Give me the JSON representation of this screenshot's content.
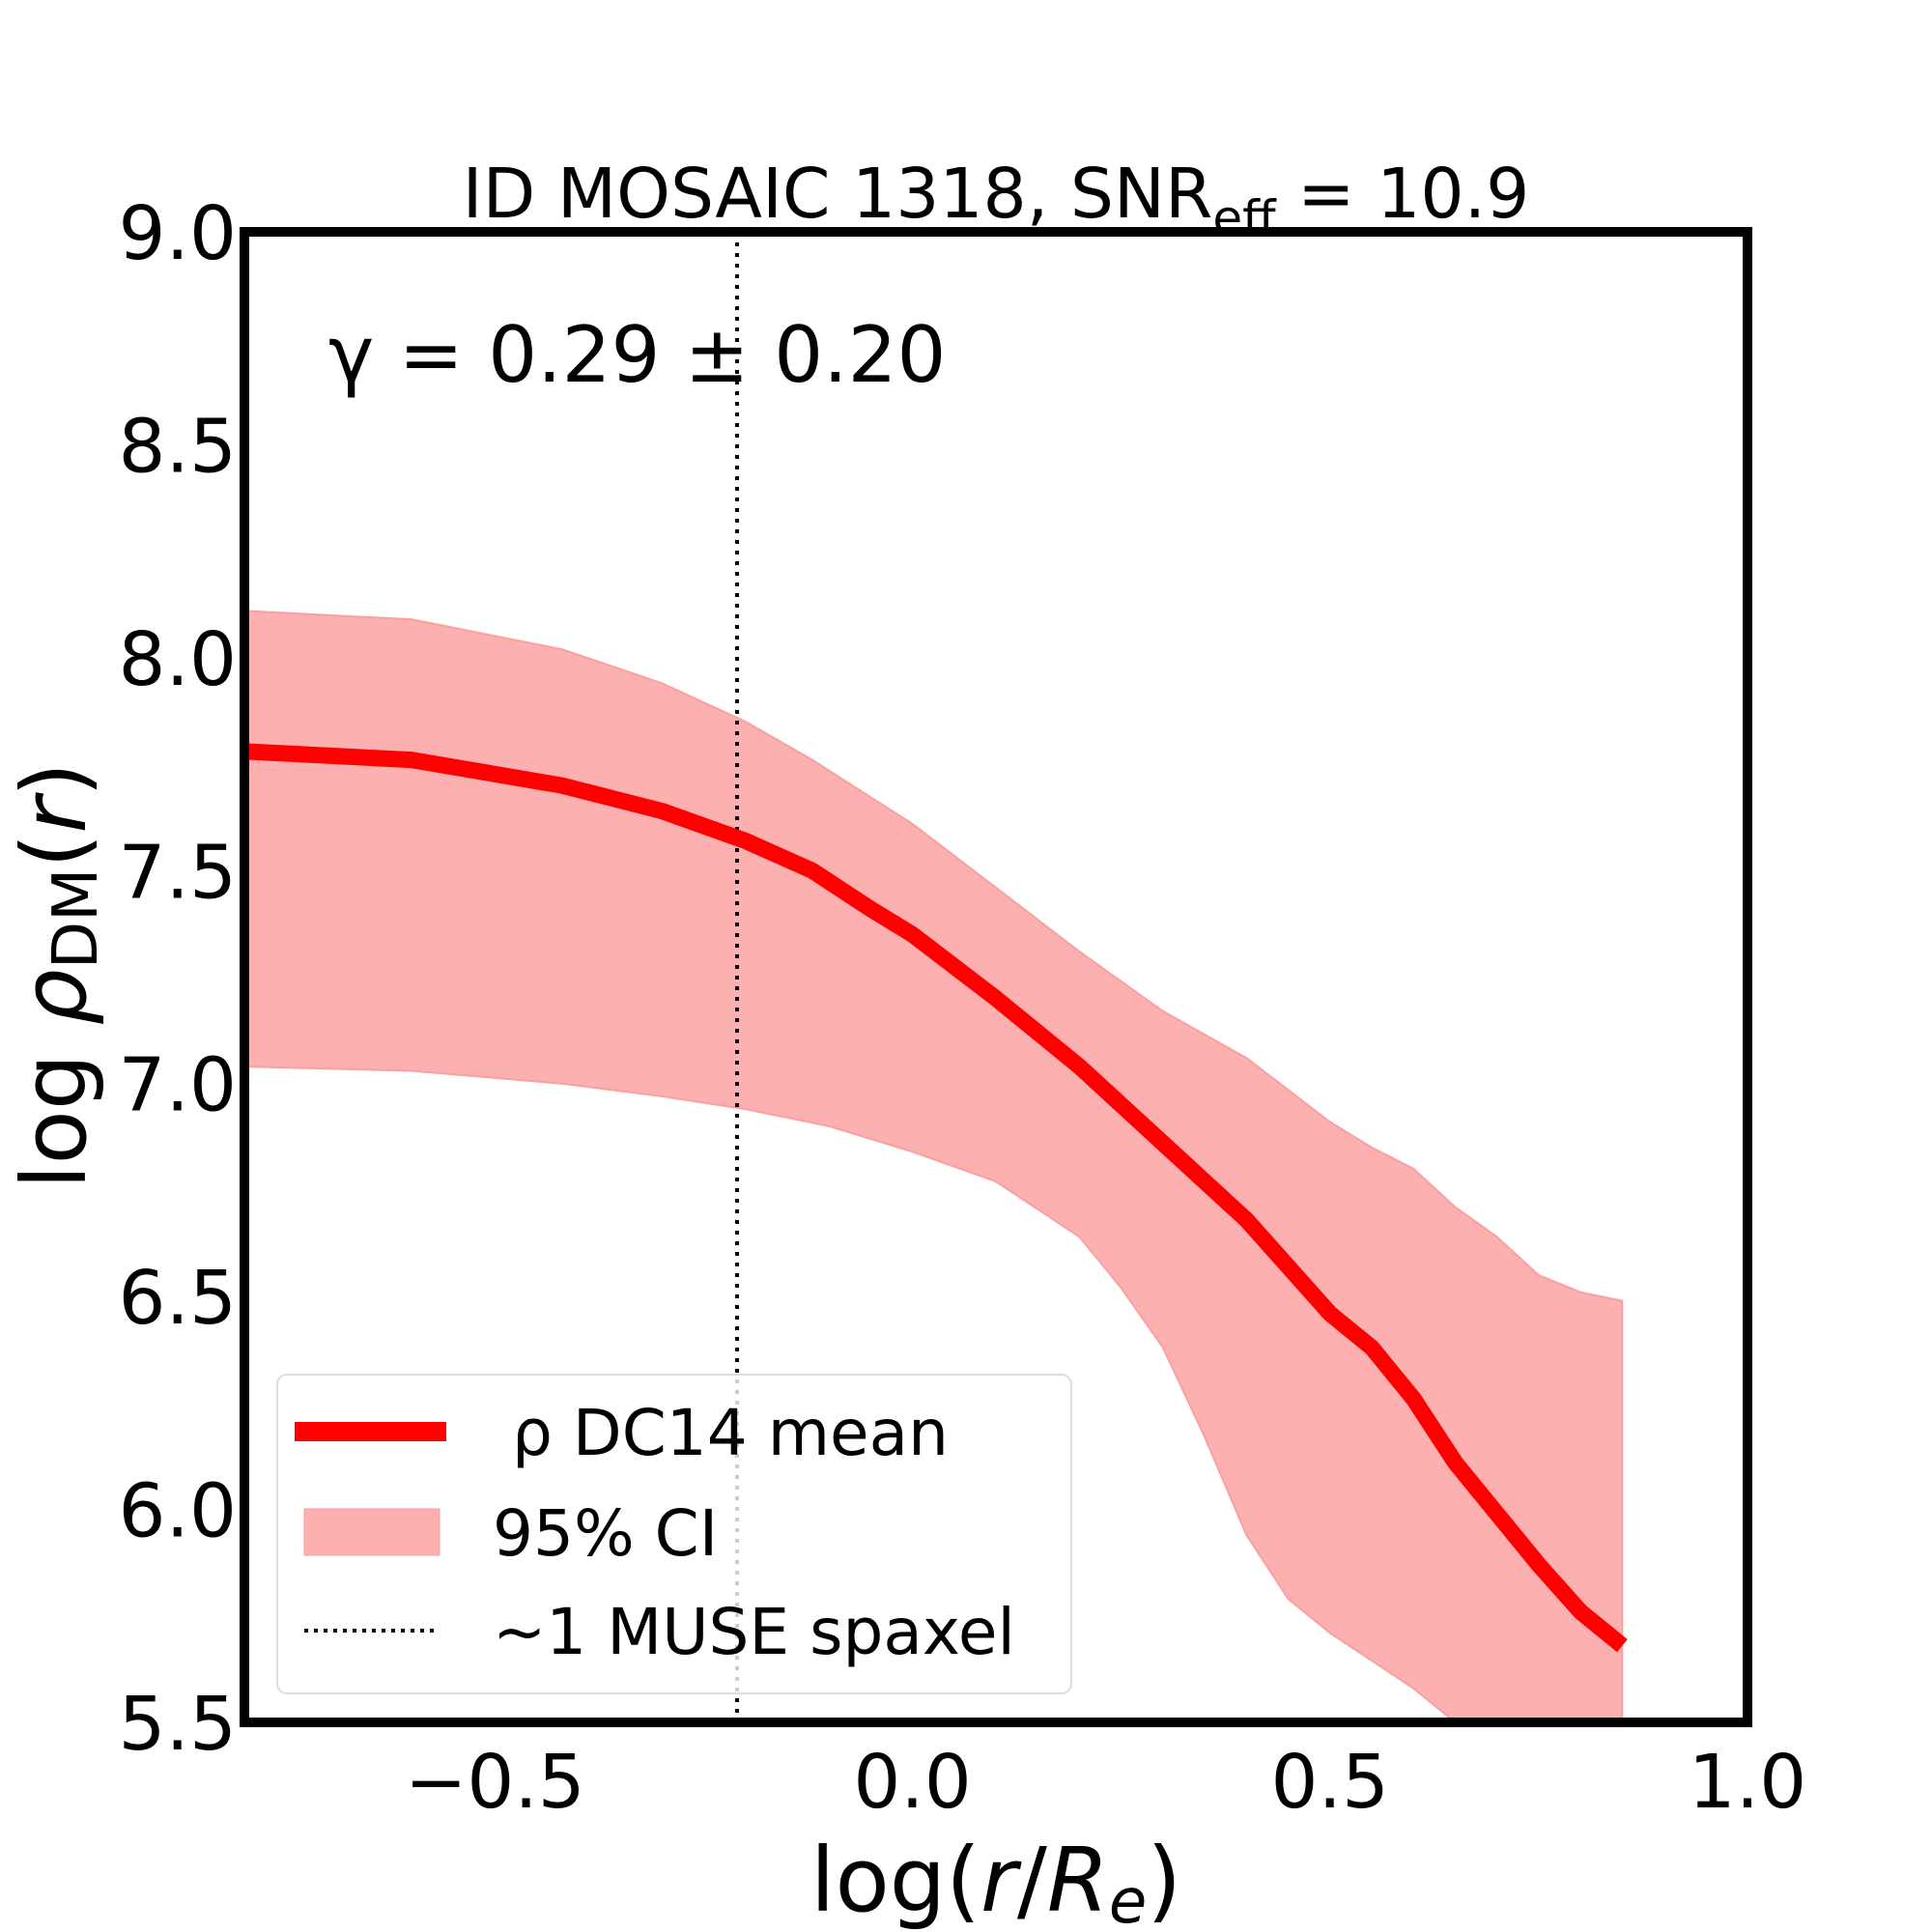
{
  "chart_data": {
    "type": "line",
    "title": "ID MOSAIC 1318, SNR",
    "title_sub": "eff",
    "title_tail": " = 10.9",
    "annotation": "γ = 0.29 ± 0.20",
    "xlabel": "log(r/R_e)",
    "ylabel": "log ρ_DM(r)",
    "xlim": [
      -0.8,
      1.0
    ],
    "ylim": [
      5.5,
      9.0
    ],
    "xticks": [
      -0.5,
      0.0,
      0.5,
      1.0
    ],
    "xtick_labels": [
      "−0.5",
      "0.0",
      "0.5",
      "1.0"
    ],
    "yticks": [
      5.5,
      6.0,
      6.5,
      7.0,
      7.5,
      8.0,
      8.5,
      9.0
    ],
    "ytick_labels": [
      "5.5",
      "6.0",
      "6.5",
      "7.0",
      "7.5",
      "8.0",
      "8.5",
      "9.0"
    ],
    "grid": false,
    "legend_placement": "lower-left",
    "series": [
      {
        "name": "ρ DC14 mean",
        "color": "#ff0000",
        "x": [
          -0.8,
          -0.6,
          -0.42,
          -0.3,
          -0.2,
          -0.12,
          -0.05,
          0.0,
          0.1,
          0.2,
          0.3,
          0.4,
          0.5,
          0.55,
          0.6,
          0.65,
          0.7,
          0.75,
          0.8,
          0.85
        ],
        "y": [
          7.78,
          7.76,
          7.7,
          7.64,
          7.57,
          7.5,
          7.41,
          7.35,
          7.2,
          7.04,
          6.86,
          6.68,
          6.46,
          6.38,
          6.26,
          6.11,
          5.99,
          5.87,
          5.76,
          5.68
        ]
      }
    ],
    "band": {
      "name": "95% CI",
      "color": "#fdb0b0",
      "x_upper": [
        -0.8,
        -0.6,
        -0.42,
        -0.3,
        -0.2,
        -0.12,
        0.0,
        0.2,
        0.3,
        0.4,
        0.5,
        0.55,
        0.6,
        0.65,
        0.7,
        0.75,
        0.8,
        0.85
      ],
      "upper": [
        8.11,
        8.09,
        8.02,
        7.94,
        7.85,
        7.76,
        7.61,
        7.31,
        7.17,
        7.06,
        6.91,
        6.85,
        6.8,
        6.71,
        6.64,
        6.55,
        6.51,
        6.49
      ],
      "x_lower": [
        -0.8,
        -0.6,
        -0.42,
        -0.3,
        -0.2,
        -0.1,
        0.0,
        0.1,
        0.2,
        0.25,
        0.3,
        0.35,
        0.4,
        0.45,
        0.5,
        0.6,
        0.65,
        0.85
      ],
      "lower": [
        7.04,
        7.03,
        7.0,
        6.97,
        6.94,
        6.9,
        6.84,
        6.77,
        6.64,
        6.52,
        6.38,
        6.17,
        5.94,
        5.79,
        5.71,
        5.58,
        5.5,
        5.3
      ]
    },
    "vline": {
      "name": "~1 MUSE spaxel",
      "x": -0.21,
      "color": "#000000"
    }
  }
}
